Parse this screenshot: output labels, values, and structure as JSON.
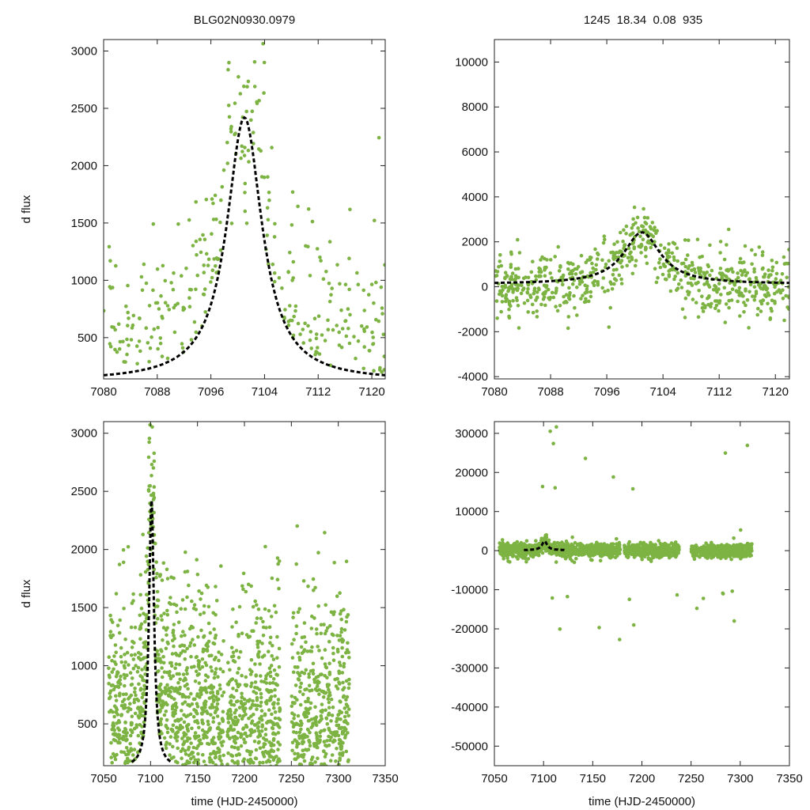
{
  "figure": {
    "title_left": "BLG02N0930.0979",
    "title_right": "1245  18.34  0.08  935",
    "colors": {
      "points": "#7cb342",
      "model": "#000000",
      "axes": "#222222"
    }
  },
  "chart_data": [
    {
      "id": "panel-top-left",
      "type": "scatter",
      "title": "BLG02N0930.0979",
      "ylabel": "d flux",
      "xlabel": "",
      "xlim": [
        7080,
        7122
      ],
      "ylim": [
        140,
        3100
      ],
      "xticks": [
        7080,
        7088,
        7096,
        7104,
        7112,
        7120
      ],
      "yticks": [
        500,
        1000,
        1500,
        2000,
        2500,
        3000
      ],
      "model": {
        "t0": 7101,
        "peak": 2420,
        "base": 120,
        "tE": 3.2,
        "xrange": [
          7080,
          7122
        ]
      },
      "scatter_seed": 11,
      "n_points": 320
    },
    {
      "id": "panel-top-right",
      "type": "scatter",
      "title": "1245  18.34  0.08  935",
      "ylabel": "",
      "xlabel": "",
      "xlim": [
        7080,
        7122
      ],
      "ylim": [
        -4100,
        11000
      ],
      "xticks": [
        7080,
        7088,
        7096,
        7104,
        7112,
        7120
      ],
      "yticks": [
        -4000,
        -2000,
        0,
        2000,
        4000,
        6000,
        8000,
        10000
      ],
      "model": {
        "t0": 7101,
        "peak": 2420,
        "base": 120,
        "tE": 3.2,
        "xrange": [
          7080,
          7122
        ]
      },
      "scatter_seed": 23,
      "n_points": 700
    },
    {
      "id": "panel-bottom-left",
      "type": "scatter",
      "title": "",
      "ylabel": "d flux",
      "xlabel": "time (HJD-2450000)",
      "xlim": [
        7050,
        7350
      ],
      "ylim": [
        140,
        3100
      ],
      "xticks": [
        7050,
        7100,
        7150,
        7200,
        7250,
        7300,
        7350
      ],
      "yticks": [
        500,
        1000,
        1500,
        2000,
        2500,
        3000
      ],
      "model": {
        "t0": 7101,
        "peak": 2420,
        "base": 120,
        "tE": 3.2,
        "xrange": [
          7080,
          7122
        ]
      },
      "scatter_seed": 37,
      "n_points": 1800
    },
    {
      "id": "panel-bottom-right",
      "type": "scatter",
      "title": "",
      "ylabel": "",
      "xlabel": "time (HJD-2450000)",
      "xlim": [
        7050,
        7350
      ],
      "ylim": [
        -55000,
        33000
      ],
      "xticks": [
        7050,
        7100,
        7150,
        7200,
        7250,
        7300,
        7350
      ],
      "yticks": [
        -50000,
        -40000,
        -30000,
        -20000,
        -10000,
        0,
        10000,
        20000,
        30000
      ],
      "model": {
        "t0": 7101,
        "peak": 2420,
        "base": 120,
        "tE": 3.2,
        "xrange": [
          7080,
          7122
        ]
      },
      "scatter_seed": 53,
      "n_points": 1800
    }
  ]
}
